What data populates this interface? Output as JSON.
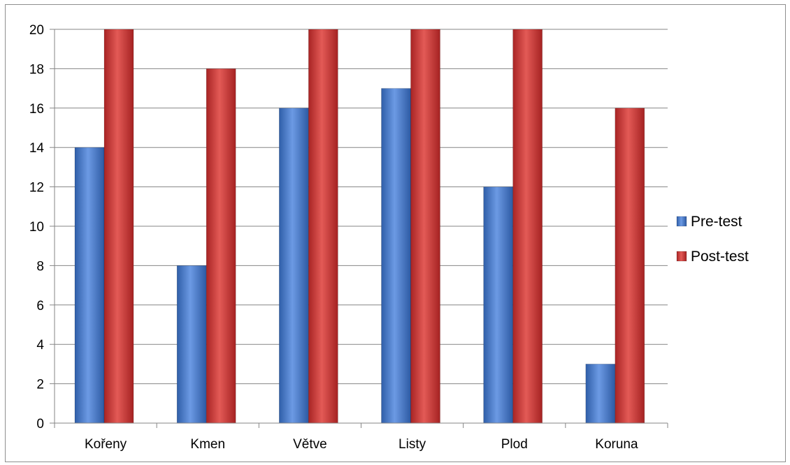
{
  "chart_data": {
    "type": "bar",
    "title": "",
    "xlabel": "",
    "ylabel": "",
    "categories": [
      "Kořeny",
      "Kmen",
      "Větve",
      "Listy",
      "Plod",
      "Koruna"
    ],
    "series": [
      {
        "name": "Pre-test",
        "values": [
          14,
          8,
          16,
          17,
          12,
          3
        ],
        "color": "#3f72c6"
      },
      {
        "name": "Post-test",
        "values": [
          20,
          18,
          20,
          20,
          20,
          16
        ],
        "color": "#c83232"
      }
    ],
    "ylim": [
      0,
      20
    ],
    "yticks": [
      0,
      2,
      4,
      6,
      8,
      10,
      12,
      14,
      16,
      18,
      20
    ],
    "grid": true,
    "legend_position": "right"
  }
}
